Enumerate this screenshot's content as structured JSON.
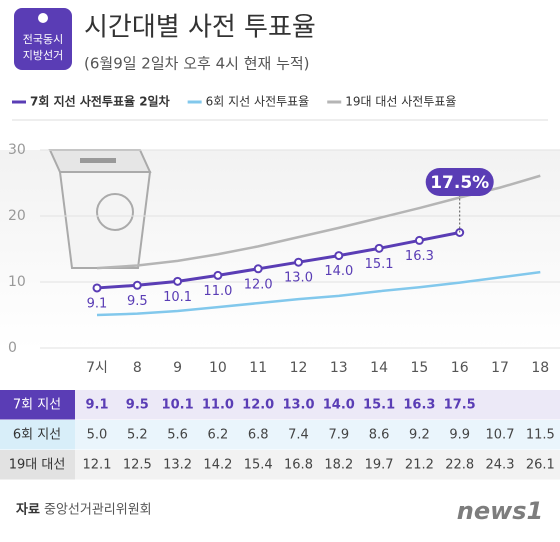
{
  "badge": [
    "전국동시",
    "지방선거"
  ],
  "chart_data": {
    "type": "line",
    "title": "시간대별 사전 투표율",
    "subtitle": "(6월9일 2일차 오후 4시 현재 누적)",
    "categories": [
      "7시",
      "8",
      "9",
      "10",
      "11",
      "12",
      "13",
      "14",
      "15",
      "16",
      "17",
      "18"
    ],
    "series": [
      {
        "name": "7회 지선 사전투표율 2일차",
        "color": "#5a3db5",
        "values": [
          9.1,
          9.5,
          10.1,
          11.0,
          12.0,
          13.0,
          14.0,
          15.1,
          16.3,
          17.5,
          null,
          null
        ],
        "value_labels": [
          "9.1",
          "9.5",
          "10.1",
          "11.0",
          "12.0",
          "13.0",
          "14.0",
          "15.1",
          "16.3",
          "17.5%",
          null,
          null
        ]
      },
      {
        "name": "6회 지선 사전투표율",
        "color": "#82c8ec",
        "values": [
          5.0,
          5.2,
          5.6,
          6.2,
          6.8,
          7.4,
          7.9,
          8.6,
          9.2,
          9.9,
          10.7,
          11.5
        ]
      },
      {
        "name": "19대 대선 사전투표율",
        "color": "#b5b5b5",
        "values": [
          12.1,
          12.5,
          13.2,
          14.2,
          15.4,
          16.8,
          18.2,
          19.7,
          21.2,
          22.8,
          24.3,
          26.1
        ]
      }
    ],
    "ylim": [
      0,
      30
    ],
    "yticks": [
      0,
      10,
      20,
      30
    ]
  },
  "table": {
    "row_labels": [
      "7회 지선",
      "6회 지선",
      "19대 대선"
    ],
    "rows": [
      [
        "9.1",
        "9.5",
        "10.1",
        "11.0",
        "12.0",
        "13.0",
        "14.0",
        "15.1",
        "16.3",
        "17.5",
        "",
        ""
      ],
      [
        "5.0",
        "5.2",
        "5.6",
        "6.2",
        "6.8",
        "7.4",
        "7.9",
        "8.6",
        "9.2",
        "9.9",
        "10.7",
        "11.5"
      ],
      [
        "12.1",
        "12.5",
        "13.2",
        "14.2",
        "15.4",
        "16.8",
        "18.2",
        "19.7",
        "21.2",
        "22.8",
        "24.3",
        "26.1"
      ]
    ]
  },
  "source": {
    "label": "자료",
    "text": "중앙선거관리위원회"
  },
  "logo": "news1"
}
